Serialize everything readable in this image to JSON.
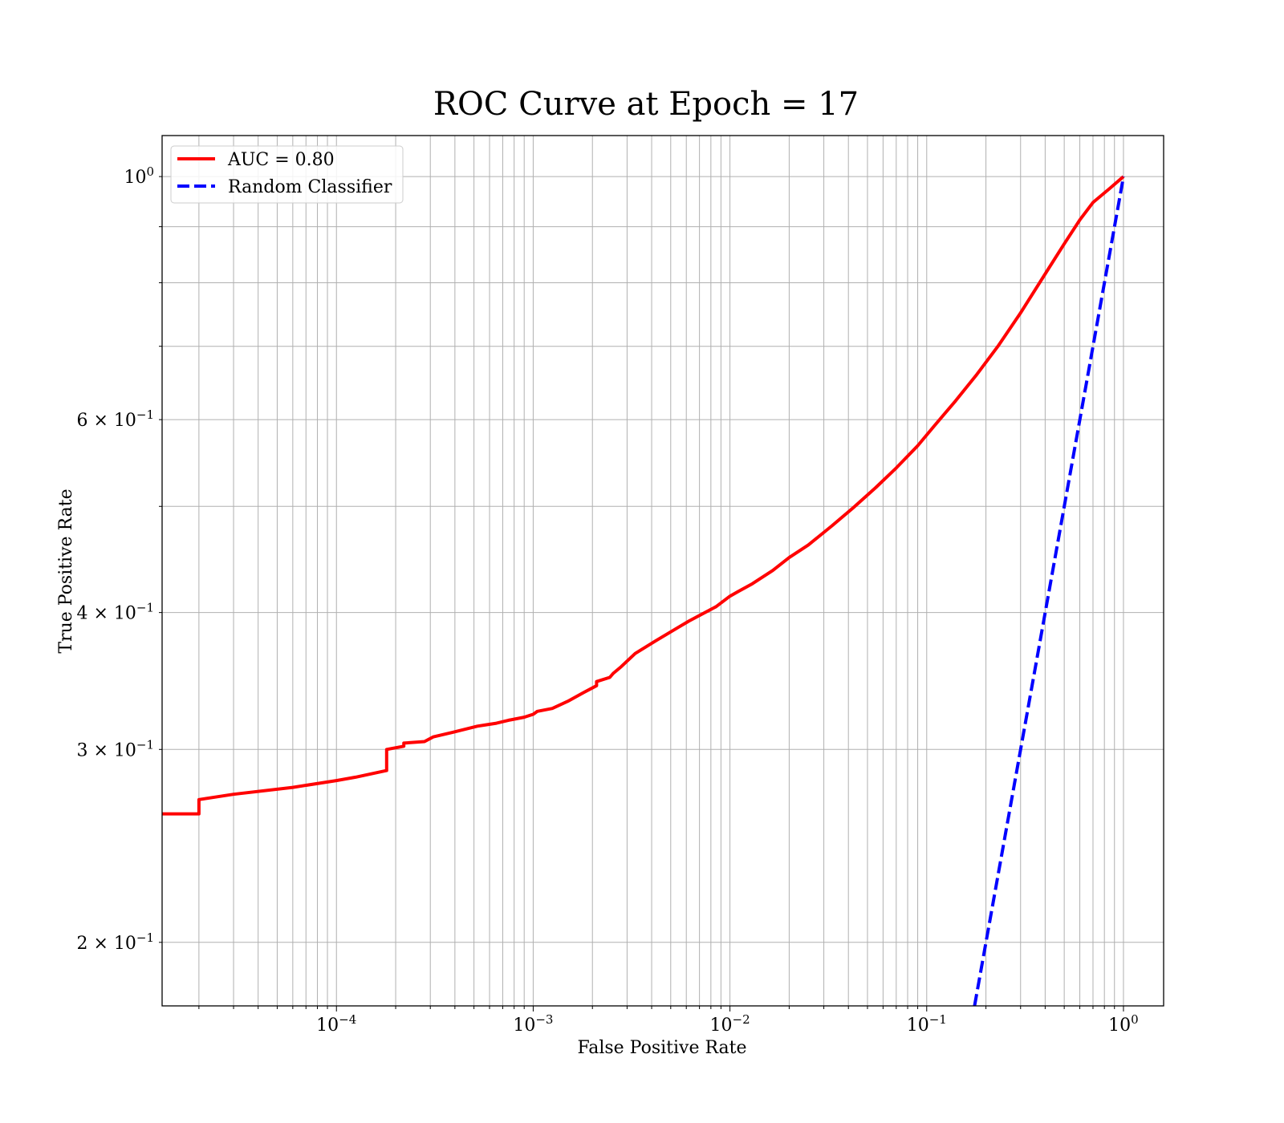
{
  "chart_data": {
    "type": "line",
    "title": "ROC Curve at Epoch = 17",
    "xlabel": "False Positive Rate",
    "ylabel": "True Positive Rate",
    "xscale": "log",
    "yscale": "log",
    "xlim": [
      1.3e-05,
      1.6
    ],
    "ylim": [
      0.175,
      1.09
    ],
    "grid": true,
    "grid_which": "both",
    "legend_position": "upper left",
    "x_tick_labels": [
      {
        "value": 0.0001,
        "base": "10",
        "exp": "−4"
      },
      {
        "value": 0.001,
        "base": "10",
        "exp": "−3"
      },
      {
        "value": 0.01,
        "base": "10",
        "exp": "−2"
      },
      {
        "value": 0.1,
        "base": "10",
        "exp": "−1"
      },
      {
        "value": 1,
        "base": "10",
        "exp": "0"
      }
    ],
    "y_tick_labels": [
      {
        "value": 1,
        "base": "10",
        "exp": "0"
      },
      {
        "value": 0.6,
        "base": "6 × 10",
        "exp": "−1"
      },
      {
        "value": 0.4,
        "base": "4 × 10",
        "exp": "−1"
      },
      {
        "value": 0.3,
        "base": "3 × 10",
        "exp": "−1"
      },
      {
        "value": 0.2,
        "base": "2 × 10",
        "exp": "−1"
      }
    ],
    "series": [
      {
        "name": "AUC = 0.80",
        "color": "#ff0000",
        "style": "solid",
        "x": [
          1.3e-05,
          2e-05,
          2e-05,
          3e-05,
          6e-05,
          0.0001,
          0.000125,
          0.00018,
          0.00018,
          0.00022,
          0.00022,
          0.00028,
          0.00031,
          0.00039,
          0.00052,
          0.00058,
          0.00065,
          0.00075,
          0.0009,
          0.001,
          0.00105,
          0.00125,
          0.0015,
          0.0018,
          0.0021,
          0.0021,
          0.00245,
          0.00255,
          0.0028,
          0.0033,
          0.0042,
          0.0055,
          0.0062,
          0.0085,
          0.01,
          0.011,
          0.013,
          0.0165,
          0.02,
          0.025,
          0.033,
          0.042,
          0.055,
          0.07,
          0.09,
          0.11,
          0.14,
          0.18,
          0.23,
          0.3,
          0.4,
          0.5,
          0.6,
          0.7,
          0.85,
          1.0
        ],
        "y": [
          0.262,
          0.262,
          0.27,
          0.273,
          0.277,
          0.281,
          0.283,
          0.287,
          0.3,
          0.302,
          0.304,
          0.305,
          0.308,
          0.311,
          0.315,
          0.316,
          0.317,
          0.319,
          0.321,
          0.323,
          0.325,
          0.327,
          0.332,
          0.338,
          0.343,
          0.346,
          0.349,
          0.352,
          0.357,
          0.367,
          0.377,
          0.388,
          0.393,
          0.405,
          0.414,
          0.418,
          0.425,
          0.437,
          0.449,
          0.461,
          0.48,
          0.498,
          0.52,
          0.542,
          0.568,
          0.593,
          0.624,
          0.66,
          0.7,
          0.751,
          0.815,
          0.868,
          0.913,
          0.947,
          0.975,
          1.0
        ]
      },
      {
        "name": "Random Classifier",
        "color": "#0000ff",
        "style": "dashed",
        "x": [
          0.175,
          1.0
        ],
        "y": [
          0.175,
          1.0
        ]
      }
    ]
  }
}
